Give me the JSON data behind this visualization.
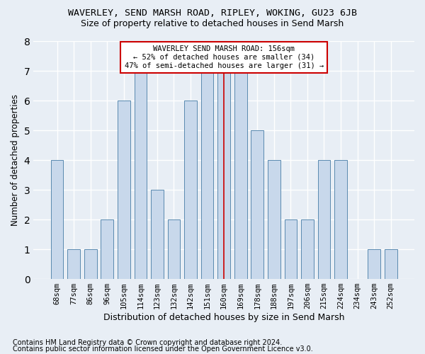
{
  "title": "WAVERLEY, SEND MARSH ROAD, RIPLEY, WOKING, GU23 6JB",
  "subtitle": "Size of property relative to detached houses in Send Marsh",
  "xlabel": "Distribution of detached houses by size in Send Marsh",
  "ylabel": "Number of detached properties",
  "categories": [
    "68sqm",
    "77sqm",
    "86sqm",
    "96sqm",
    "105sqm",
    "114sqm",
    "123sqm",
    "132sqm",
    "142sqm",
    "151sqm",
    "160sqm",
    "169sqm",
    "178sqm",
    "188sqm",
    "197sqm",
    "206sqm",
    "215sqm",
    "224sqm",
    "234sqm",
    "243sqm",
    "252sqm"
  ],
  "values": [
    4,
    1,
    1,
    2,
    6,
    7,
    3,
    2,
    6,
    7,
    7,
    7,
    5,
    4,
    2,
    2,
    4,
    4,
    0,
    1,
    1
  ],
  "highlight_index": 10,
  "bar_color": "#c8d8eb",
  "bar_edge_color": "#5a8ab0",
  "annotation_title": "WAVERLEY SEND MARSH ROAD: 156sqm",
  "annotation_line1": "← 52% of detached houses are smaller (34)",
  "annotation_line2": "47% of semi-detached houses are larger (31) →",
  "annotation_box_facecolor": "#ffffff",
  "annotation_box_edgecolor": "#cc0000",
  "highlight_line_color": "#cc0000",
  "footnote1": "Contains HM Land Registry data © Crown copyright and database right 2024.",
  "footnote2": "Contains public sector information licensed under the Open Government Licence v3.0.",
  "ylim": [
    0,
    8
  ],
  "background_color": "#e8eef5",
  "grid_color": "#ffffff",
  "title_fontsize": 9.5,
  "subtitle_fontsize": 9,
  "xlabel_fontsize": 9,
  "ylabel_fontsize": 8.5,
  "tick_fontsize": 7.5,
  "annotation_fontsize": 7.5,
  "footnote_fontsize": 7
}
